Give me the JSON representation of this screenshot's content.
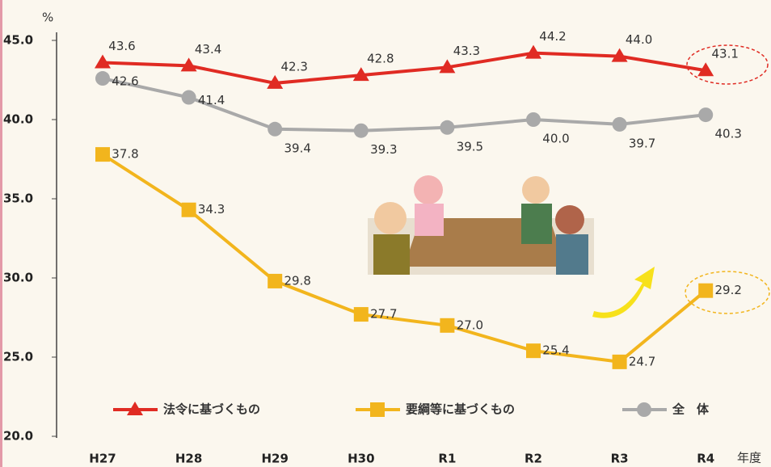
{
  "chart_data": {
    "type": "line",
    "y_label": "%",
    "x_label": "年度",
    "categories": [
      "H27",
      "H28",
      "H29",
      "H30",
      "R1",
      "R2",
      "R3",
      "R4"
    ],
    "series": [
      {
        "name": "法令に基づくもの",
        "color": "#e02b23",
        "marker": "triangle",
        "values": [
          43.6,
          43.4,
          42.3,
          42.8,
          43.3,
          44.2,
          44.0,
          43.1
        ],
        "value_labels": [
          "43.6",
          "43.4",
          "42.3",
          "42.8",
          "43.3",
          "44.2",
          "44.0",
          "43.1"
        ]
      },
      {
        "name": "要綱等に基づくもの",
        "color": "#f2b51d",
        "marker": "square",
        "values": [
          37.8,
          34.3,
          29.8,
          27.7,
          27.0,
          25.4,
          24.7,
          29.2
        ],
        "value_labels": [
          "37.8",
          "34.3",
          "29.8",
          "27.7",
          "27.0",
          "25.4",
          "24.7",
          "29.2"
        ]
      },
      {
        "name": "全　体",
        "color": "#a9a9a9",
        "marker": "circle",
        "values": [
          42.6,
          41.4,
          39.4,
          39.3,
          39.5,
          40.0,
          39.7,
          40.3
        ],
        "value_labels": [
          "42.6",
          "41.4",
          "39.4",
          "39.3",
          "39.5",
          "40.0",
          "39.7",
          "40.3"
        ]
      }
    ],
    "ylim": [
      20,
      45
    ],
    "yticks": [
      {
        "value": 20,
        "label": "20.0"
      },
      {
        "value": 25,
        "label": "25.0"
      },
      {
        "value": 30,
        "label": "30.0"
      },
      {
        "value": 35,
        "label": "35.0"
      },
      {
        "value": 40,
        "label": "40.0"
      },
      {
        "value": 45,
        "label": "45.0"
      }
    ],
    "grid": false,
    "legend": "bottom"
  }
}
